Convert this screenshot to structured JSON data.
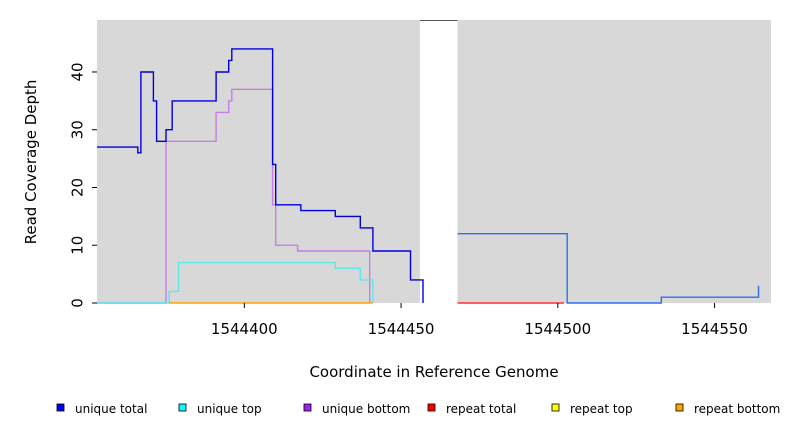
{
  "chart_data": {
    "type": "line",
    "title": "",
    "xlabel": "Coordinate in Reference Genome",
    "ylabel": "Read Coverage Depth",
    "xlim": [
      1544353,
      1544568
    ],
    "ylim": [
      0,
      49
    ],
    "x_ticks": [
      1544400,
      1544450,
      1544500,
      1544550
    ],
    "y_ticks": [
      0,
      10,
      20,
      30,
      40
    ],
    "grid": false,
    "background_color": "#d8d8d8",
    "uncovered_regions": [
      [
        1544456,
        1544468
      ]
    ],
    "legend_position": "bottom",
    "legend": [
      {
        "label": "unique total",
        "color": "#0000ff"
      },
      {
        "label": "unique top",
        "color": "#00ffff"
      },
      {
        "label": "unique bottom",
        "color": "#a020f0"
      },
      {
        "label": "repeat total",
        "color": "#ff0000"
      },
      {
        "label": "repeat top",
        "color": "#ffff00"
      },
      {
        "label": "repeat bottom",
        "color": "#ffa500"
      }
    ],
    "series": [
      {
        "key": "unique_bottom",
        "color": "#c77ce8",
        "x": [
          1544353,
          1544375,
          1544391,
          1544395,
          1544396,
          1544409,
          1544410,
          1544417,
          1544440
        ],
        "y": [
          0,
          28,
          33,
          35,
          37,
          17,
          10,
          9,
          0
        ]
      },
      {
        "key": "unique_top",
        "color": "#5ee8e8",
        "x": [
          1544353,
          1544376,
          1544379,
          1544429,
          1544437,
          1544441
        ],
        "y": [
          0,
          2,
          7,
          6,
          4,
          0
        ]
      },
      {
        "key": "repeat_bottom",
        "color": "#ffa500",
        "x": [
          1544376,
          1544441
        ],
        "y": [
          0,
          0
        ]
      },
      {
        "key": "repeat_total",
        "color": "#ff3030",
        "x": [
          1544468,
          1544502
        ],
        "y": [
          0,
          0
        ]
      },
      {
        "key": "unique_total",
        "color": "#0000dd",
        "x": [
          1544353,
          1544366,
          1544367,
          1544371,
          1544372,
          1544375,
          1544377,
          1544391,
          1544395,
          1544396,
          1544409,
          1544410,
          1544418,
          1544429,
          1544437,
          1544441,
          1544453,
          1544457
        ],
        "y": [
          27,
          26,
          40,
          35,
          28,
          30,
          35,
          40,
          42,
          44,
          24,
          17,
          16,
          15,
          13,
          9,
          4,
          0
        ]
      },
      {
        "key": "unique_total_after_gap",
        "color": "#2f6fef",
        "x": [
          1544468,
          1544503,
          1544533,
          1544564
        ],
        "y": [
          12,
          0,
          1,
          3
        ]
      }
    ]
  }
}
